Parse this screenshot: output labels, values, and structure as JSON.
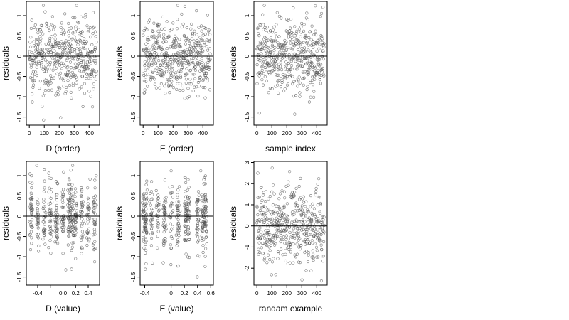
{
  "chart_data": [
    {
      "type": "scatter",
      "xlabel": "D (order)",
      "ylabel": "residuals",
      "xticks": [
        0,
        100,
        200,
        300,
        400
      ],
      "yticks": [
        -1.5,
        -1.0,
        -0.5,
        0.0,
        0.5,
        1.0
      ],
      "xlim": [
        -20,
        470
      ],
      "ylim": [
        -1.7,
        1.35
      ],
      "reference_line_y": 0,
      "x_kind": "index",
      "n_points": 460,
      "y_spread": 0.45,
      "y_range": [
        -1.65,
        1.25
      ]
    },
    {
      "type": "scatter",
      "xlabel": "E (order)",
      "ylabel": "residuals",
      "xticks": [
        0,
        100,
        200,
        300,
        400
      ],
      "yticks": [
        -1.5,
        -1.0,
        -0.5,
        0.0,
        0.5,
        1.0
      ],
      "xlim": [
        -20,
        470
      ],
      "ylim": [
        -1.7,
        1.35
      ],
      "reference_line_y": 0,
      "x_kind": "index",
      "n_points": 460,
      "y_spread": 0.45,
      "y_range": [
        -1.65,
        1.25
      ]
    },
    {
      "type": "scatter",
      "xlabel": "sample index",
      "ylabel": "residuals",
      "xticks": [
        0,
        100,
        200,
        300,
        400
      ],
      "yticks": [
        -1.5,
        -1.0,
        -0.5,
        0.0,
        0.5,
        1.0
      ],
      "xlim": [
        -20,
        470
      ],
      "ylim": [
        -1.7,
        1.35
      ],
      "reference_line_y": 0,
      "x_kind": "index",
      "n_points": 460,
      "y_spread": 0.45,
      "y_range": [
        -1.65,
        1.25
      ]
    },
    {
      "type": "scatter",
      "xlabel": "D (value)",
      "ylabel": "residuals",
      "xticks": [
        -0.4,
        -0.2,
        0.0,
        0.2,
        0.4
      ],
      "xtick_labels": [
        "-0.4",
        "",
        "0.0",
        "0.2",
        "0.4"
      ],
      "yticks": [
        -1.5,
        -1.0,
        -0.5,
        0.0,
        0.5,
        1.0
      ],
      "xlim": [
        -0.58,
        0.58
      ],
      "ylim": [
        -1.7,
        1.35
      ],
      "reference_line_y": 0,
      "x_kind": "grouped",
      "x_groups": [
        -0.5,
        -0.4,
        -0.3,
        -0.2,
        -0.1,
        0.0,
        0.1,
        0.15,
        0.2,
        0.3,
        0.4,
        0.5
      ],
      "n_points": 460,
      "y_spread": 0.45,
      "y_range": [
        -1.65,
        1.25
      ]
    },
    {
      "type": "scatter",
      "xlabel": "E (value)",
      "ylabel": "residuals",
      "xticks": [
        -0.4,
        0.0,
        0.2,
        0.4,
        0.6
      ],
      "yticks": [
        -1.5,
        -1.0,
        -0.5,
        0.0,
        0.5,
        1.0
      ],
      "xlim": [
        -0.47,
        0.64
      ],
      "ylim": [
        -1.7,
        1.35
      ],
      "reference_line_y": 0,
      "x_kind": "grouped",
      "x_groups": [
        -0.42,
        -0.38,
        -0.3,
        -0.2,
        -0.1,
        0.0,
        0.1,
        0.22,
        0.26,
        0.4,
        0.48,
        0.52
      ],
      "n_points": 460,
      "y_spread": 0.45,
      "y_range": [
        -1.65,
        1.25
      ]
    },
    {
      "type": "scatter",
      "xlabel": "randam example",
      "ylabel": "residuals",
      "xticks": [
        0,
        100,
        200,
        300,
        400
      ],
      "yticks": [
        -2,
        -1,
        0,
        1,
        2,
        3
      ],
      "xlim": [
        -20,
        470
      ],
      "ylim": [
        -2.8,
        3.05
      ],
      "reference_line_y": 0,
      "x_kind": "index",
      "n_points": 460,
      "y_spread": 1.0,
      "y_range": [
        -2.6,
        2.85
      ]
    }
  ],
  "colors": {
    "point_stroke": "#555555",
    "reference_line": "#000000",
    "axes": "#000000"
  }
}
